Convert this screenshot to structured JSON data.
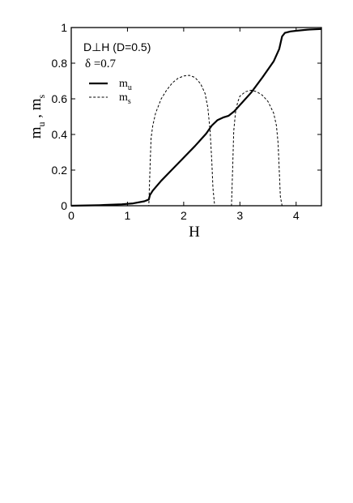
{
  "chart_data": {
    "type": "line",
    "xlabel": "H",
    "ylabel_parts": [
      "m",
      "u",
      " , m",
      "s"
    ],
    "xlim": [
      0,
      4.45
    ],
    "ylim": [
      0,
      1.0
    ],
    "x_ticks": [
      0,
      1,
      2,
      3,
      4
    ],
    "x_tick_labels": [
      "0",
      "1",
      "2",
      "3",
      "4"
    ],
    "y_ticks": [
      0,
      0.2,
      0.4,
      0.6,
      0.8,
      1
    ],
    "y_tick_labels": [
      "0",
      "0.2",
      "0.4",
      "0.6",
      "0.8",
      "1"
    ],
    "annotations": {
      "line1": "D⊥H (D=0.5)",
      "line2": "δ =0.7"
    },
    "legend_position": "upper-left",
    "series": [
      {
        "name": "m_u",
        "label_base": "m",
        "label_sub": "u",
        "style": "solid",
        "x": [
          0,
          0.5,
          0.9,
          1.1,
          1.3,
          1.38,
          1.4,
          1.45,
          1.6,
          1.8,
          2.0,
          2.2,
          2.4,
          2.5,
          2.6,
          2.7,
          2.8,
          2.9,
          3.0,
          3.2,
          3.4,
          3.6,
          3.7,
          3.75,
          3.8,
          3.9,
          4.0,
          4.2,
          4.45
        ],
        "y": [
          0,
          0.003,
          0.008,
          0.013,
          0.025,
          0.035,
          0.06,
          0.085,
          0.14,
          0.205,
          0.27,
          0.335,
          0.405,
          0.45,
          0.48,
          0.495,
          0.505,
          0.53,
          0.565,
          0.635,
          0.72,
          0.81,
          0.88,
          0.95,
          0.97,
          0.978,
          0.982,
          0.988,
          0.992
        ]
      },
      {
        "name": "m_s",
        "label_base": "m",
        "label_sub": "s",
        "style": "dashed",
        "x": [
          0,
          1.38,
          1.4,
          1.42,
          1.45,
          1.5,
          1.6,
          1.7,
          1.8,
          1.9,
          2.0,
          2.1,
          2.2,
          2.3,
          2.38,
          2.43,
          2.47,
          2.5,
          2.52,
          2.55,
          2.85,
          2.87,
          2.89,
          2.92,
          2.96,
          3.0,
          3.1,
          3.2,
          3.3,
          3.4,
          3.5,
          3.6,
          3.65,
          3.68,
          3.7,
          3.72,
          3.75,
          4.45
        ],
        "y": [
          0,
          0,
          0.2,
          0.38,
          0.45,
          0.52,
          0.6,
          0.65,
          0.69,
          0.715,
          0.728,
          0.732,
          0.72,
          0.685,
          0.63,
          0.55,
          0.42,
          0.25,
          0.1,
          0,
          0,
          0.2,
          0.42,
          0.52,
          0.58,
          0.615,
          0.64,
          0.648,
          0.64,
          0.62,
          0.585,
          0.52,
          0.45,
          0.35,
          0.2,
          0.05,
          0,
          0
        ]
      }
    ]
  }
}
